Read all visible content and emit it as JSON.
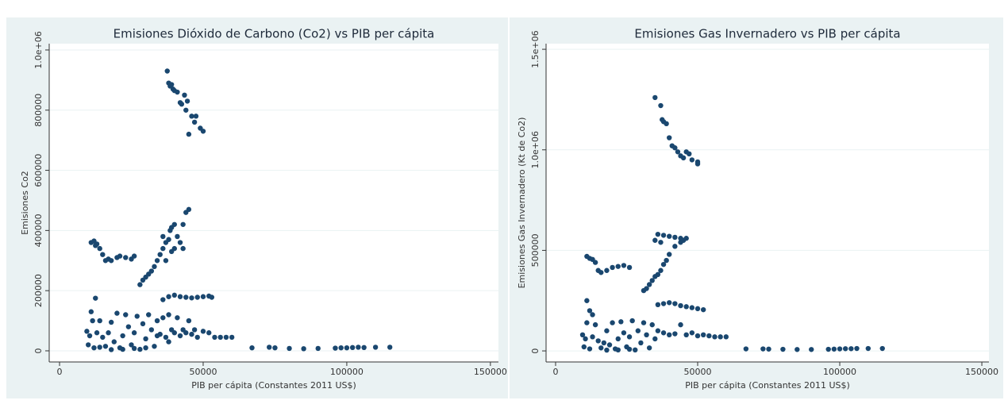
{
  "chart_data": [
    {
      "type": "scatter",
      "title": "Emisiones Dióxido de Carbono (Co2) vs PIB per cápita",
      "x_label": "PIB per cápita (Constantes 2011 US$)",
      "y_label": "Emisiones Co2",
      "color": "#1a476f",
      "grid": true,
      "xlim": [
        -3600,
        152800
      ],
      "ylim": [
        -37000,
        1021000
      ],
      "xticks": [
        0,
        50000,
        100000,
        150000
      ],
      "yticks": [
        0,
        200000,
        400000,
        600000,
        800000,
        {
          "value": 1000000,
          "label": "1.0e+06"
        }
      ],
      "x": [
        37500,
        38000,
        38500,
        39000,
        39500,
        40000,
        41000,
        42000,
        42500,
        43500,
        44000,
        45000,
        46000,
        47000,
        49000,
        50000,
        44500,
        47500,
        11000,
        12000,
        12500,
        13000,
        14000,
        15000,
        16000,
        17000,
        18000,
        20000,
        21000,
        23000,
        25000,
        26000,
        28000,
        29000,
        30000,
        31000,
        32000,
        33000,
        34000,
        35000,
        36000,
        37000,
        38000,
        38500,
        39000,
        40000,
        41000,
        42000,
        43000,
        44000,
        45000,
        36000,
        40000,
        43000,
        37000,
        39000,
        36000,
        38000,
        40000,
        42000,
        44000,
        46000,
        48000,
        50000,
        52000,
        53000,
        12500,
        9500,
        10000,
        10500,
        11000,
        11500,
        12000,
        13000,
        14000,
        15000,
        16000,
        17000,
        18000,
        19000,
        20000,
        21000,
        22000,
        23000,
        24000,
        25000,
        26000,
        27000,
        28000,
        29000,
        30000,
        31000,
        32000,
        33000,
        34000,
        35000,
        36000,
        37000,
        38000,
        39000,
        40000,
        41000,
        42000,
        43000,
        44000,
        45000,
        46000,
        47000,
        48000,
        50000,
        52000,
        54000,
        56000,
        58000,
        60000,
        22000,
        26000,
        30000,
        18000,
        14000,
        34000,
        38000,
        67000,
        73000,
        75000,
        80000,
        85000,
        90000,
        96000,
        98000,
        100000,
        102000,
        104000,
        106000,
        110000,
        115000
      ],
      "y": [
        930000,
        890000,
        880000,
        885000,
        870000,
        865000,
        860000,
        825000,
        820000,
        850000,
        800000,
        720000,
        780000,
        760000,
        740000,
        730000,
        830000,
        780000,
        360000,
        365000,
        350000,
        355000,
        340000,
        320000,
        300000,
        305000,
        300000,
        310000,
        315000,
        310000,
        305000,
        315000,
        220000,
        235000,
        245000,
        255000,
        265000,
        280000,
        300000,
        320000,
        340000,
        360000,
        370000,
        400000,
        410000,
        420000,
        380000,
        360000,
        420000,
        460000,
        470000,
        380000,
        340000,
        340000,
        300000,
        330000,
        170000,
        180000,
        185000,
        180000,
        178000,
        176000,
        178000,
        180000,
        182000,
        178000,
        175000,
        65000,
        20000,
        50000,
        130000,
        100000,
        10000,
        60000,
        100000,
        45000,
        15000,
        60000,
        95000,
        30000,
        125000,
        10000,
        50000,
        120000,
        80000,
        20000,
        60000,
        115000,
        5000,
        90000,
        40000,
        120000,
        70000,
        15000,
        100000,
        55000,
        110000,
        45000,
        120000,
        70000,
        60000,
        110000,
        50000,
        70000,
        60000,
        100000,
        55000,
        70000,
        45000,
        65000,
        60000,
        45000,
        45000,
        45000,
        45000,
        5000,
        8000,
        10000,
        4000,
        12000,
        50000,
        30000,
        10000,
        12000,
        10000,
        8000,
        7000,
        8000,
        9000,
        10000,
        10000,
        11000,
        12000,
        11000,
        12000,
        12000
      ]
    },
    {
      "type": "scatter",
      "title": "Emisiones Gas Invernadero vs PIB per cápita",
      "x_label": "PIB per cápita (Constantes 2011 US$)",
      "y_label": "Emisiones Gas Invernadero (Kt de Co2)",
      "color": "#1a476f",
      "grid": true,
      "xlim": [
        -3350,
        152500
      ],
      "ylim": [
        -55000,
        1528000
      ],
      "xticks": [
        0,
        50000,
        100000,
        150000
      ],
      "yticks": [
        0,
        500000,
        {
          "value": 1000000,
          "label": "1.0e+06"
        },
        {
          "value": 1500000,
          "label": "1.5e+06"
        }
      ],
      "x": [
        35000,
        37000,
        37500,
        38000,
        39000,
        40000,
        41000,
        42000,
        43000,
        44000,
        45000,
        46000,
        47000,
        48000,
        50000,
        50000,
        11000,
        12000,
        13000,
        14000,
        15000,
        16000,
        18000,
        20000,
        22000,
        24000,
        26000,
        31000,
        32000,
        33000,
        34000,
        35000,
        36000,
        37000,
        38000,
        39000,
        40000,
        42000,
        44000,
        46000,
        36000,
        38000,
        40000,
        42000,
        44000,
        45000,
        35000,
        37000,
        36000,
        38000,
        40000,
        42000,
        44000,
        46000,
        48000,
        50000,
        52000,
        11000,
        12000,
        13000,
        9500,
        10000,
        10500,
        11000,
        12000,
        13000,
        14000,
        15000,
        16000,
        17000,
        18000,
        19000,
        20000,
        21000,
        22000,
        23000,
        24000,
        25000,
        26000,
        27000,
        28000,
        29000,
        30000,
        31000,
        32000,
        33000,
        34000,
        35000,
        36000,
        38000,
        40000,
        42000,
        44000,
        46000,
        48000,
        50000,
        52000,
        54000,
        56000,
        58000,
        60000,
        22000,
        26000,
        18000,
        67000,
        73000,
        75000,
        80000,
        85000,
        90000,
        96000,
        98000,
        100000,
        102000,
        104000,
        106000,
        110000,
        115000
      ],
      "y": [
        1260000,
        1220000,
        1150000,
        1140000,
        1130000,
        1060000,
        1020000,
        1010000,
        990000,
        970000,
        960000,
        990000,
        980000,
        950000,
        940000,
        930000,
        470000,
        460000,
        455000,
        440000,
        400000,
        390000,
        400000,
        415000,
        420000,
        425000,
        415000,
        300000,
        310000,
        330000,
        350000,
        370000,
        380000,
        400000,
        430000,
        450000,
        480000,
        520000,
        540000,
        560000,
        580000,
        575000,
        570000,
        565000,
        560000,
        550000,
        550000,
        540000,
        230000,
        235000,
        240000,
        235000,
        225000,
        220000,
        215000,
        210000,
        205000,
        250000,
        200000,
        180000,
        80000,
        20000,
        60000,
        140000,
        10000,
        70000,
        130000,
        50000,
        15000,
        40000,
        100000,
        30000,
        140000,
        10000,
        60000,
        145000,
        90000,
        20000,
        70000,
        150000,
        5000,
        100000,
        40000,
        140000,
        80000,
        15000,
        130000,
        60000,
        100000,
        90000,
        80000,
        85000,
        130000,
        80000,
        90000,
        75000,
        80000,
        75000,
        70000,
        70000,
        70000,
        5000,
        8000,
        4000,
        10000,
        10000,
        9000,
        8000,
        7000,
        7000,
        8000,
        9000,
        10000,
        11000,
        11000,
        12000,
        12000,
        12000
      ]
    }
  ]
}
